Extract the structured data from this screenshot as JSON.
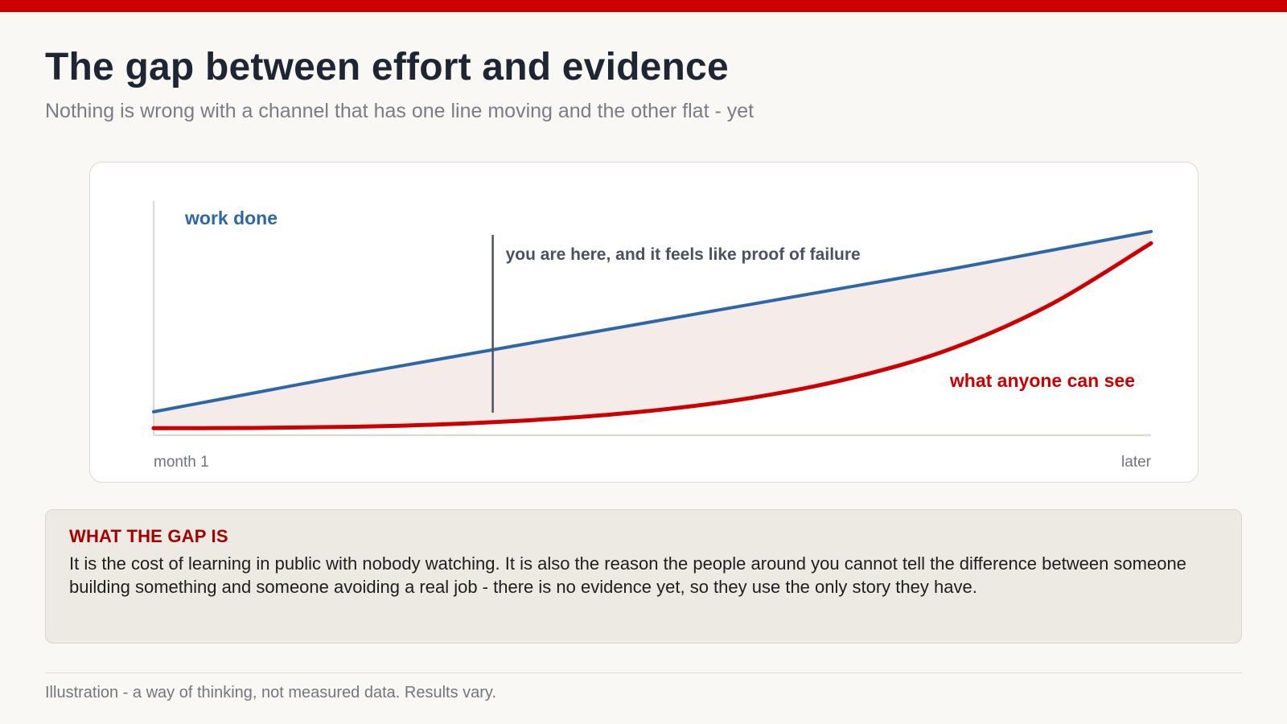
{
  "header": {
    "title": "The gap between effort and evidence",
    "subtitle": "Nothing is wrong with a channel that has one line moving and the other flat - yet"
  },
  "chart_data": {
    "type": "line",
    "title": "",
    "xlabel": "",
    "ylabel": "",
    "x_tick_labels": [
      "month 1",
      "later"
    ],
    "x_range": [
      0,
      1
    ],
    "ylim": [
      0,
      1
    ],
    "grid": false,
    "series": [
      {
        "name": "work done",
        "color": "#2f67a6",
        "x": [
          0,
          0.1,
          0.2,
          0.3,
          0.4,
          0.5,
          0.6,
          0.7,
          0.8,
          0.9,
          1.0
        ],
        "y": [
          0.1,
          0.18,
          0.26,
          0.335,
          0.41,
          0.485,
          0.56,
          0.635,
          0.71,
          0.79,
          0.87
        ]
      },
      {
        "name": "what anyone can see",
        "color": "#cc0000",
        "x": [
          0,
          0.1,
          0.2,
          0.3,
          0.4,
          0.5,
          0.6,
          0.7,
          0.8,
          0.9,
          1.0
        ],
        "y": [
          0.03,
          0.031,
          0.036,
          0.048,
          0.07,
          0.105,
          0.16,
          0.245,
          0.37,
          0.56,
          0.82
        ]
      }
    ],
    "gap_fill_color": "#f5ecea",
    "annotation": {
      "text": "you are here, and it feels like proof of failure",
      "x": 0.34
    }
  },
  "info": {
    "title": "WHAT THE GAP IS",
    "body": "It is the cost of learning in public with nobody watching. It is also the reason the people around you cannot tell the difference between someone building something and someone avoiding a real job - there is no evidence yet, so they use the only story they have."
  },
  "footer": {
    "note": "Illustration - a way of thinking, not measured data. Results vary."
  },
  "colors": {
    "accent_bar": "#cc0000",
    "title": "#1e2533",
    "info_title": "#a30000"
  }
}
